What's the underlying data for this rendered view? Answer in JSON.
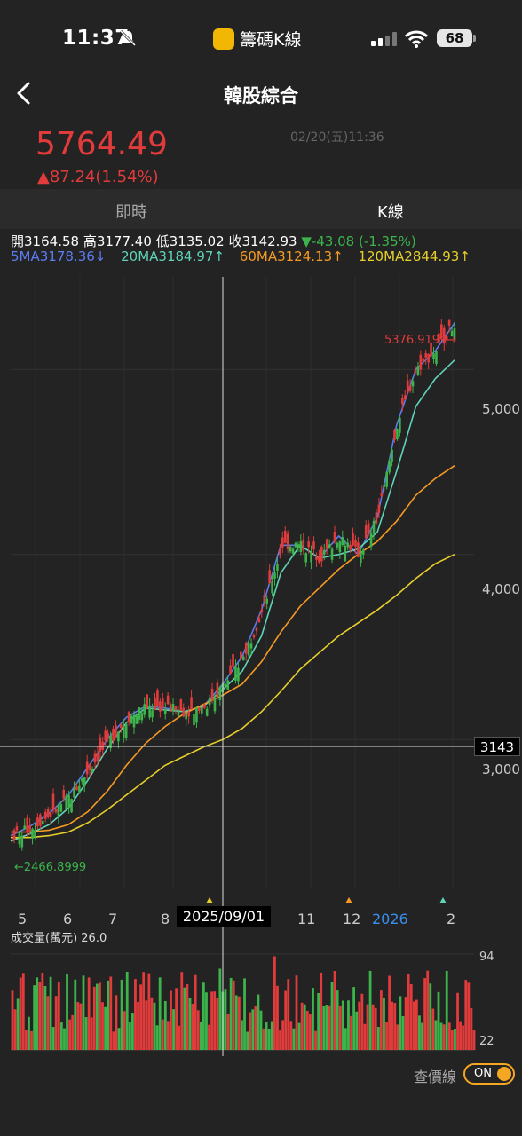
{
  "status": {
    "time": "11:37",
    "app_name": "籌碼K線",
    "battery": "68"
  },
  "header": {
    "title": "韓股綜合"
  },
  "quote": {
    "price": "5764.49",
    "change": "▲87.24(1.54%)",
    "datetime": "02/20(五)11:36"
  },
  "tabs": [
    "即時",
    "K線"
  ],
  "ohlc": {
    "open_label": "開",
    "open": "3164.58",
    "high_label": "高",
    "high": "3177.40",
    "low_label": "低",
    "low": "3135.02",
    "close_label": "收",
    "close": "3142.93",
    "change": "▼-43.08 (-1.35%)"
  },
  "ma": {
    "ma5": "5MA3178.36↓",
    "ma20": "20MA3184.97↑",
    "ma60": "60MA3124.13↑",
    "ma120": "120MA2844.93↑"
  },
  "colors": {
    "up": "#e23b3b",
    "down": "#3cb44b",
    "ma5": "#5b7df2",
    "ma20": "#5fd3b8",
    "ma60": "#f59a23",
    "ma120": "#e6cf2b",
    "accent": "#f5a623"
  },
  "chart_data": {
    "type": "candlestick",
    "y_ticks": [
      "5,000",
      "4,000",
      "3,000"
    ],
    "ylim": [
      2200,
      5500
    ],
    "x_labels": [
      "5",
      "6",
      "7",
      "8",
      "11",
      "12",
      "2026",
      "2"
    ],
    "crosshair_date": "2025/09/01",
    "crosshair_value": "3143",
    "high_annotation": "5376.9199→",
    "low_annotation": "←2466.8999",
    "ma_lines": [
      {
        "name": "5MA",
        "values": [
          2480,
          2530,
          2600,
          2700,
          2850,
          3000,
          3120,
          3180,
          3170,
          3150,
          3180,
          3300,
          3450,
          3700,
          4050,
          4050,
          3980,
          4100,
          4000,
          4200,
          4700,
          5000,
          5100,
          5250
        ]
      },
      {
        "name": "20MA",
        "values": [
          2450,
          2490,
          2540,
          2630,
          2780,
          2950,
          3090,
          3170,
          3160,
          3150,
          3180,
          3270,
          3370,
          3560,
          3900,
          4050,
          3980,
          4000,
          4030,
          4120,
          4450,
          4800,
          4950,
          5050
        ]
      },
      {
        "name": "60MA",
        "values": [
          2500,
          2500,
          2510,
          2540,
          2610,
          2720,
          2860,
          2980,
          3070,
          3140,
          3190,
          3240,
          3300,
          3420,
          3580,
          3720,
          3820,
          3920,
          4000,
          4070,
          4180,
          4320,
          4410,
          4480
        ]
      },
      {
        "name": "120MA",
        "values": [
          2470,
          2470,
          2480,
          2500,
          2550,
          2620,
          2700,
          2780,
          2860,
          2910,
          2960,
          3000,
          3060,
          3150,
          3260,
          3380,
          3470,
          3560,
          3630,
          3700,
          3780,
          3870,
          3950,
          4000
        ]
      }
    ]
  },
  "volume": {
    "label": "成交量(萬元) 26.0",
    "max": "94",
    "min": "22"
  },
  "toggle": {
    "label": "查價線",
    "state": "ON"
  }
}
